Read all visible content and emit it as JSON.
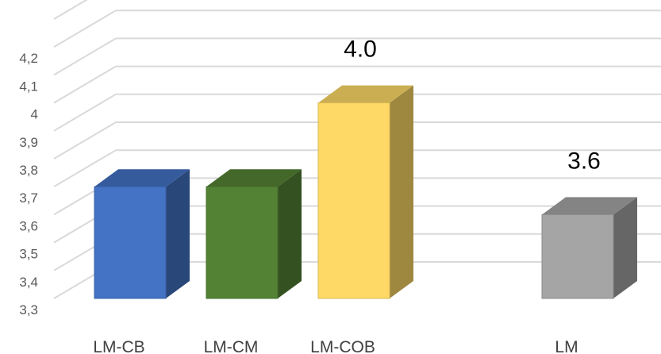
{
  "chart_data": {
    "type": "bar",
    "style": "3d-column",
    "categories": [
      "LM-CB",
      "LM-CM",
      "LM-COB",
      "",
      "LM"
    ],
    "values": [
      3.7,
      3.7,
      4.0,
      null,
      3.6
    ],
    "data_labels": [
      "",
      "",
      "4.0",
      "",
      "3.6"
    ],
    "colors": {
      "LM-CB": "#4472C4",
      "LM-CM": "#548235",
      "LM-COB": "#FFD966",
      "LM": "#A5A5A5"
    },
    "y_ticks": [
      "3,3",
      "3,4",
      "3,5",
      "3,6",
      "3,7",
      "3,8",
      "3,9",
      "4",
      "4,1",
      "4,2"
    ],
    "ylim": [
      3.3,
      4.3
    ],
    "grid": true,
    "legend": "none",
    "title": "",
    "xlabel": "",
    "ylabel": ""
  }
}
